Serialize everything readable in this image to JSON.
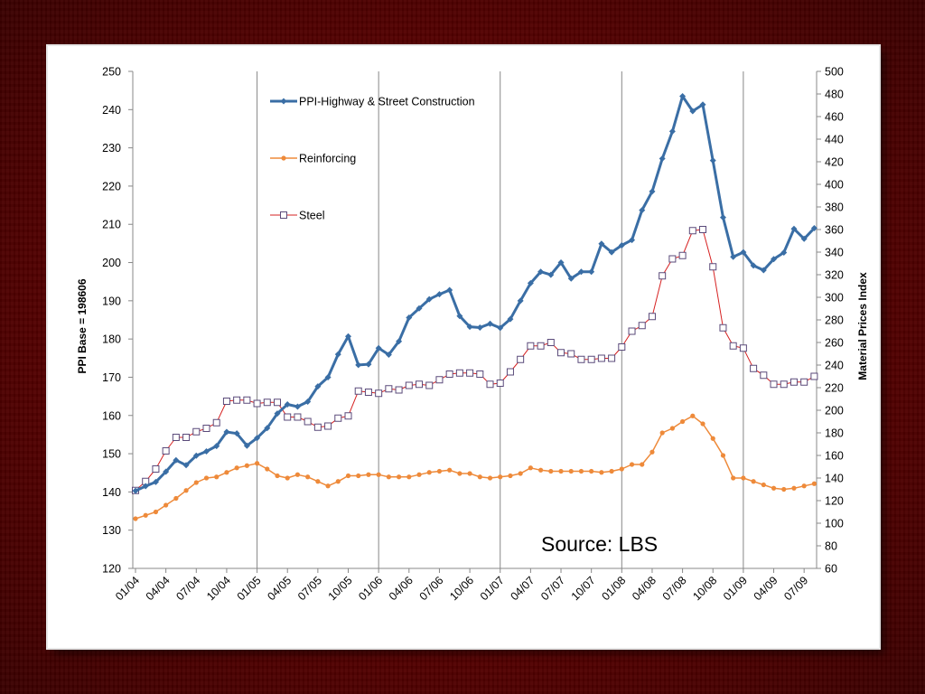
{
  "colors": {
    "highway": "#3a6ea5",
    "reinforcing": "#ee8a3a",
    "steel_line": "#d62020",
    "steel_marker": "#5a4a7a"
  },
  "chart_data": {
    "type": "line",
    "source": "Source: LBS",
    "x_tick_labels": [
      "01/04",
      "04/04",
      "07/04",
      "10/04",
      "01/05",
      "04/05",
      "07/05",
      "10/05",
      "01/06",
      "04/06",
      "07/06",
      "10/06",
      "01/07",
      "04/07",
      "07/07",
      "10/07",
      "01/08",
      "04/08",
      "07/08",
      "10/08",
      "01/09",
      "04/09",
      "07/09"
    ],
    "x_months": [
      "01/04",
      "02/04",
      "03/04",
      "04/04",
      "05/04",
      "06/04",
      "07/04",
      "08/04",
      "09/04",
      "10/04",
      "11/04",
      "12/04",
      "01/05",
      "02/05",
      "03/05",
      "04/05",
      "05/05",
      "06/05",
      "07/05",
      "08/05",
      "09/05",
      "10/05",
      "11/05",
      "12/05",
      "01/06",
      "02/06",
      "03/06",
      "04/06",
      "05/06",
      "06/06",
      "07/06",
      "08/06",
      "09/06",
      "10/06",
      "11/06",
      "12/06",
      "01/07",
      "02/07",
      "03/07",
      "04/07",
      "05/07",
      "06/07",
      "07/07",
      "08/07",
      "09/07",
      "10/07",
      "11/07",
      "12/07",
      "01/08",
      "02/08",
      "03/08",
      "04/08",
      "05/08",
      "06/08",
      "07/08",
      "08/08",
      "09/08",
      "10/08",
      "11/08",
      "12/08",
      "01/09",
      "02/09",
      "03/09",
      "04/09",
      "05/09",
      "06/09",
      "07/09",
      "08/09"
    ],
    "left_axis": {
      "label": "PPI Base = 198606",
      "min": 120,
      "max": 250,
      "step": 10
    },
    "right_axis": {
      "label": "Material Prices Index",
      "min": 60,
      "max": 500,
      "step": 20
    },
    "series": [
      {
        "name": "PPI-Highway & Street Construction",
        "axis": "left",
        "values": [
          140.3,
          141.5,
          142.6,
          145.3,
          148.3,
          147.0,
          149.5,
          150.6,
          152.0,
          155.7,
          155.3,
          152.1,
          154.1,
          156.7,
          160.5,
          162.9,
          162.3,
          163.6,
          167.6,
          170.0,
          176.0,
          180.7,
          173.2,
          173.4,
          177.6,
          175.9,
          179.4,
          185.6,
          188.0,
          190.4,
          191.7,
          192.8,
          186.0,
          183.2,
          183.0,
          184.0,
          182.9,
          185.2,
          190.0,
          194.6,
          197.6,
          196.8,
          200.0,
          195.8,
          197.6,
          197.6,
          204.9,
          202.7,
          204.5,
          205.9,
          213.7,
          218.6,
          227.2,
          234.3,
          243.5,
          239.6,
          241.3,
          226.7,
          211.8,
          201.5,
          202.7,
          199.2,
          198.0,
          200.9,
          202.6,
          208.8,
          206.2,
          209.0
        ]
      },
      {
        "name": "Reinforcing",
        "axis": "right",
        "values": [
          104,
          107,
          110,
          116,
          122,
          129,
          136,
          140,
          141,
          145,
          149,
          151,
          153,
          148,
          142,
          140,
          143,
          141,
          137,
          133,
          137,
          142,
          142,
          143,
          143,
          141,
          141,
          141,
          143,
          145,
          146,
          147,
          144,
          144,
          141,
          140,
          141,
          142,
          144,
          149,
          147,
          146,
          146,
          146,
          146,
          146,
          145,
          146,
          148,
          152,
          152,
          163,
          180,
          184,
          190,
          195,
          188,
          175,
          160,
          140,
          140,
          137,
          134,
          131,
          130,
          131,
          133,
          135
        ]
      },
      {
        "name": "Steel",
        "axis": "right",
        "values": [
          129,
          137,
          148,
          164,
          176,
          176,
          181,
          184,
          189,
          208,
          209,
          209,
          206,
          207,
          207,
          194,
          194,
          190,
          185,
          186,
          193,
          195,
          217,
          216,
          215,
          219,
          218,
          222,
          223,
          222,
          227,
          232,
          233,
          233,
          232,
          223,
          224,
          234,
          245,
          257,
          257,
          260,
          251,
          250,
          245,
          245,
          246,
          246,
          256,
          270,
          275,
          283,
          319,
          334,
          337,
          359,
          360,
          327,
          273,
          257,
          255,
          237,
          231,
          223,
          223,
          225,
          225,
          230
        ]
      }
    ],
    "legend_placement": "inside top-left",
    "vertical_gridlines_at": [
      "01/05",
      "01/06",
      "01/07",
      "01/08",
      "01/09"
    ]
  }
}
